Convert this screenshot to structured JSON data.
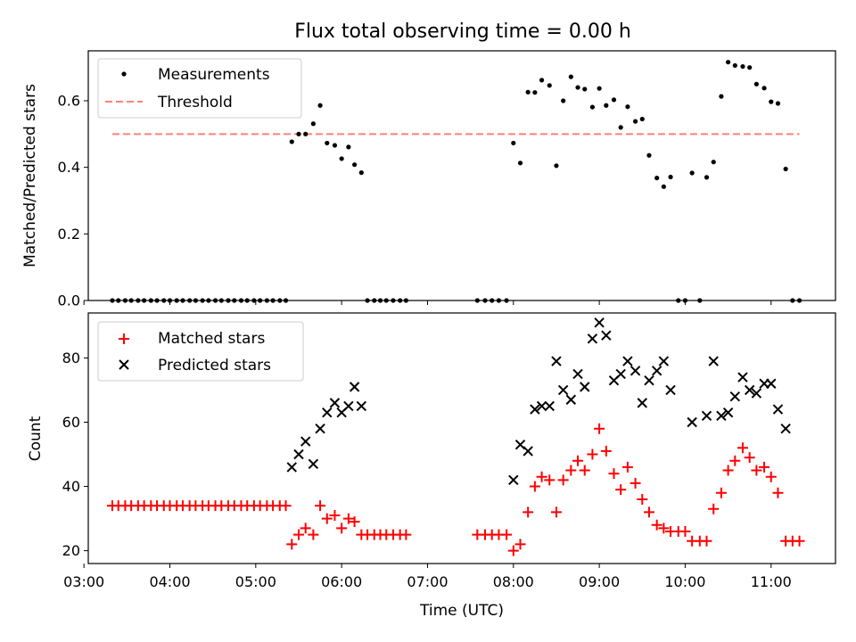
{
  "chart_data": [
    {
      "type": "scatter",
      "title": "Flux total observing time = 0.00 h",
      "xlabel": "",
      "ylabel": "Matched/Predicted stars",
      "xlim": [
        3.05,
        11.75
      ],
      "ylim": [
        0,
        0.75
      ],
      "yticks": [
        0.0,
        0.2,
        0.4,
        0.6
      ],
      "ytick_labels": [
        "0.0",
        "0.2",
        "0.4",
        "0.6"
      ],
      "grid": false,
      "legend": "upper-left",
      "series": [
        {
          "name": "Measurements",
          "marker": "dot",
          "color": "#000000",
          "points": [
            [
              3.33,
              0
            ],
            [
              3.4,
              0
            ],
            [
              3.48,
              0
            ],
            [
              3.55,
              0
            ],
            [
              3.63,
              0
            ],
            [
              3.7,
              0
            ],
            [
              3.78,
              0
            ],
            [
              3.85,
              0
            ],
            [
              3.93,
              0
            ],
            [
              4.0,
              0
            ],
            [
              4.08,
              0
            ],
            [
              4.15,
              0
            ],
            [
              4.23,
              0
            ],
            [
              4.3,
              0
            ],
            [
              4.38,
              0
            ],
            [
              4.45,
              0
            ],
            [
              4.53,
              0
            ],
            [
              4.6,
              0
            ],
            [
              4.68,
              0
            ],
            [
              4.75,
              0
            ],
            [
              4.83,
              0
            ],
            [
              4.9,
              0
            ],
            [
              4.98,
              0
            ],
            [
              5.05,
              0
            ],
            [
              5.13,
              0
            ],
            [
              5.2,
              0
            ],
            [
              5.28,
              0
            ],
            [
              5.35,
              0
            ],
            [
              5.42,
              0.477
            ],
            [
              5.5,
              0.5
            ],
            [
              5.58,
              0.5
            ],
            [
              5.67,
              0.531
            ],
            [
              5.75,
              0.586
            ],
            [
              5.83,
              0.473
            ],
            [
              5.92,
              0.466
            ],
            [
              6.0,
              0.426
            ],
            [
              6.08,
              0.461
            ],
            [
              6.15,
              0.408
            ],
            [
              6.23,
              0.384
            ],
            [
              6.3,
              0
            ],
            [
              6.38,
              0
            ],
            [
              6.45,
              0
            ],
            [
              6.52,
              0
            ],
            [
              6.6,
              0
            ],
            [
              6.68,
              0
            ],
            [
              6.75,
              0
            ],
            [
              7.58,
              0
            ],
            [
              7.67,
              0
            ],
            [
              7.75,
              0
            ],
            [
              7.83,
              0
            ],
            [
              7.92,
              0
            ],
            [
              8.0,
              0.473
            ],
            [
              8.08,
              0.413
            ],
            [
              8.17,
              0.626
            ],
            [
              8.25,
              0.625
            ],
            [
              8.33,
              0.662
            ],
            [
              8.42,
              0.646
            ],
            [
              8.5,
              0.405
            ],
            [
              8.58,
              0.6
            ],
            [
              8.67,
              0.672
            ],
            [
              8.75,
              0.64
            ],
            [
              8.83,
              0.635
            ],
            [
              8.92,
              0.581
            ],
            [
              9.0,
              0.637
            ],
            [
              9.08,
              0.586
            ],
            [
              9.17,
              0.603
            ],
            [
              9.25,
              0.52
            ],
            [
              9.33,
              0.582
            ],
            [
              9.42,
              0.538
            ],
            [
              9.5,
              0.545
            ],
            [
              9.58,
              0.436
            ],
            [
              9.67,
              0.368
            ],
            [
              9.75,
              0.342
            ],
            [
              9.83,
              0.371
            ],
            [
              9.92,
              0
            ],
            [
              10.0,
              0
            ],
            [
              10.08,
              0.383
            ],
            [
              10.17,
              0
            ],
            [
              10.25,
              0.37
            ],
            [
              10.33,
              0.416
            ],
            [
              10.42,
              0.613
            ],
            [
              10.5,
              0.716
            ],
            [
              10.58,
              0.706
            ],
            [
              10.67,
              0.703
            ],
            [
              10.75,
              0.7
            ],
            [
              10.83,
              0.65
            ],
            [
              10.92,
              0.638
            ],
            [
              11.0,
              0.597
            ],
            [
              11.08,
              0.592
            ],
            [
              11.17,
              0.395
            ],
            [
              11.25,
              0
            ],
            [
              11.33,
              0
            ]
          ]
        },
        {
          "name": "Threshold",
          "marker": "dashed-line",
          "color": "#ff7f7f",
          "x": [
            3.33,
            11.33
          ],
          "y": [
            0.5,
            0.5
          ]
        }
      ]
    },
    {
      "type": "scatter",
      "title": "",
      "xlabel": "Time (UTC)",
      "ylabel": "Count",
      "xlim": [
        3.05,
        11.75
      ],
      "ylim": [
        16,
        94
      ],
      "yticks": [
        20,
        40,
        60,
        80
      ],
      "xticks": [
        3,
        4,
        5,
        6,
        7,
        8,
        9,
        10,
        11
      ],
      "xtick_labels": [
        "03:00",
        "04:00",
        "05:00",
        "06:00",
        "07:00",
        "08:00",
        "09:00",
        "10:00",
        "11:00"
      ],
      "grid": false,
      "legend": "upper-left",
      "series": [
        {
          "name": "Matched stars",
          "marker": "plus",
          "color": "#ff0000",
          "points": [
            [
              3.33,
              34
            ],
            [
              3.4,
              34
            ],
            [
              3.48,
              34
            ],
            [
              3.55,
              34
            ],
            [
              3.63,
              34
            ],
            [
              3.7,
              34
            ],
            [
              3.78,
              34
            ],
            [
              3.85,
              34
            ],
            [
              3.93,
              34
            ],
            [
              4.0,
              34
            ],
            [
              4.08,
              34
            ],
            [
              4.15,
              34
            ],
            [
              4.23,
              34
            ],
            [
              4.3,
              34
            ],
            [
              4.38,
              34
            ],
            [
              4.45,
              34
            ],
            [
              4.53,
              34
            ],
            [
              4.6,
              34
            ],
            [
              4.68,
              34
            ],
            [
              4.75,
              34
            ],
            [
              4.83,
              34
            ],
            [
              4.9,
              34
            ],
            [
              4.98,
              34
            ],
            [
              5.05,
              34
            ],
            [
              5.13,
              34
            ],
            [
              5.2,
              34
            ],
            [
              5.28,
              34
            ],
            [
              5.35,
              34
            ],
            [
              5.42,
              22
            ],
            [
              5.5,
              25
            ],
            [
              5.58,
              27
            ],
            [
              5.67,
              25
            ],
            [
              5.75,
              34
            ],
            [
              5.83,
              30
            ],
            [
              5.92,
              31
            ],
            [
              6.0,
              27
            ],
            [
              6.08,
              30
            ],
            [
              6.15,
              29
            ],
            [
              6.23,
              25
            ],
            [
              6.3,
              25
            ],
            [
              6.38,
              25
            ],
            [
              6.45,
              25
            ],
            [
              6.52,
              25
            ],
            [
              6.6,
              25
            ],
            [
              6.68,
              25
            ],
            [
              6.75,
              25
            ],
            [
              7.58,
              25
            ],
            [
              7.67,
              25
            ],
            [
              7.75,
              25
            ],
            [
              7.83,
              25
            ],
            [
              7.92,
              25
            ],
            [
              8.0,
              20
            ],
            [
              8.08,
              22
            ],
            [
              8.17,
              32
            ],
            [
              8.25,
              40
            ],
            [
              8.33,
              43
            ],
            [
              8.42,
              42
            ],
            [
              8.5,
              32
            ],
            [
              8.58,
              42
            ],
            [
              8.67,
              45
            ],
            [
              8.75,
              48
            ],
            [
              8.83,
              45
            ],
            [
              8.92,
              50
            ],
            [
              9.0,
              58
            ],
            [
              9.08,
              51
            ],
            [
              9.17,
              44
            ],
            [
              9.25,
              39
            ],
            [
              9.33,
              46
            ],
            [
              9.42,
              41
            ],
            [
              9.5,
              36
            ],
            [
              9.58,
              32
            ],
            [
              9.67,
              28
            ],
            [
              9.75,
              27
            ],
            [
              9.83,
              26
            ],
            [
              9.92,
              26
            ],
            [
              10.0,
              26
            ],
            [
              10.08,
              23
            ],
            [
              10.17,
              23
            ],
            [
              10.25,
              23
            ],
            [
              10.33,
              33
            ],
            [
              10.42,
              38
            ],
            [
              10.5,
              45
            ],
            [
              10.58,
              48
            ],
            [
              10.67,
              52
            ],
            [
              10.75,
              49
            ],
            [
              10.83,
              45
            ],
            [
              10.92,
              46
            ],
            [
              11.0,
              43
            ],
            [
              11.08,
              38
            ],
            [
              11.17,
              23
            ],
            [
              11.25,
              23
            ],
            [
              11.33,
              23
            ]
          ]
        },
        {
          "name": "Predicted stars",
          "marker": "x",
          "color": "#000000",
          "points": [
            [
              5.42,
              46
            ],
            [
              5.5,
              50
            ],
            [
              5.58,
              54
            ],
            [
              5.67,
              47
            ],
            [
              5.75,
              58
            ],
            [
              5.83,
              63
            ],
            [
              5.92,
              66
            ],
            [
              6.0,
              63
            ],
            [
              6.08,
              65
            ],
            [
              6.15,
              71
            ],
            [
              6.23,
              65
            ],
            [
              8.0,
              42
            ],
            [
              8.08,
              53
            ],
            [
              8.17,
              51
            ],
            [
              8.25,
              64
            ],
            [
              8.33,
              65
            ],
            [
              8.42,
              65
            ],
            [
              8.5,
              79
            ],
            [
              8.58,
              70
            ],
            [
              8.67,
              67
            ],
            [
              8.75,
              75
            ],
            [
              8.83,
              71
            ],
            [
              8.92,
              86
            ],
            [
              9.0,
              91
            ],
            [
              9.08,
              87
            ],
            [
              9.17,
              73
            ],
            [
              9.25,
              75
            ],
            [
              9.33,
              79
            ],
            [
              9.42,
              76
            ],
            [
              9.5,
              66
            ],
            [
              9.58,
              73
            ],
            [
              9.67,
              76
            ],
            [
              9.75,
              79
            ],
            [
              9.83,
              70
            ],
            [
              10.08,
              60
            ],
            [
              10.25,
              62
            ],
            [
              10.33,
              79
            ],
            [
              10.42,
              62
            ],
            [
              10.5,
              63
            ],
            [
              10.58,
              68
            ],
            [
              10.67,
              74
            ],
            [
              10.75,
              70
            ],
            [
              10.83,
              69
            ],
            [
              10.92,
              72
            ],
            [
              11.0,
              72
            ],
            [
              11.08,
              64
            ],
            [
              11.17,
              58
            ]
          ]
        }
      ]
    }
  ]
}
